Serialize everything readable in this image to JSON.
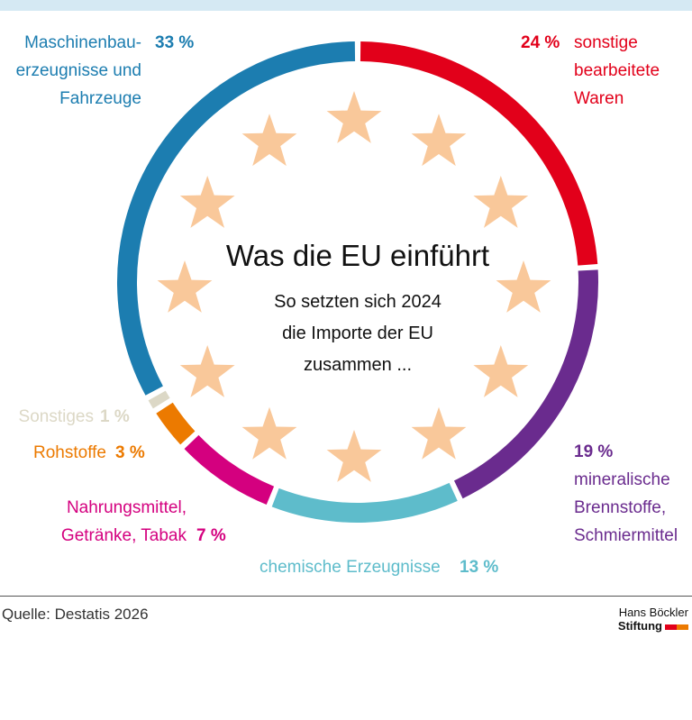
{
  "chart_data": {
    "type": "donut",
    "title": "Was die EU einführt",
    "subtitle": "So setzten sich 2024\ndie Importe der EU\nzusammen ...",
    "categories": [
      "sonstige\nbearbeitete\nWaren",
      "mineralische\nBrennstoffe,\nSchmiermittel",
      "chemische Erzeugnisse",
      "Nahrungsmittel,\nGetränke, Tabak",
      "Rohstoffe",
      "Sonstiges",
      "Maschinenbau-\nerzeugnisse und\nFahrzeuge"
    ],
    "values": [
      24,
      19,
      13,
      7,
      3,
      1,
      33
    ],
    "value_labels": [
      "24 %",
      "19 %",
      "13 %",
      "7 %",
      "3 %",
      "1 %",
      "33 %"
    ],
    "colors": [
      "#e2001a",
      "#6a2b8e",
      "#5ebccb",
      "#d4007f",
      "#ec7a00",
      "#dcd8c6",
      "#1c7db0"
    ]
  },
  "source": "Quelle: Destatis 2026",
  "logo": {
    "line1": "Hans Böckler",
    "line2": "Stiftung"
  }
}
